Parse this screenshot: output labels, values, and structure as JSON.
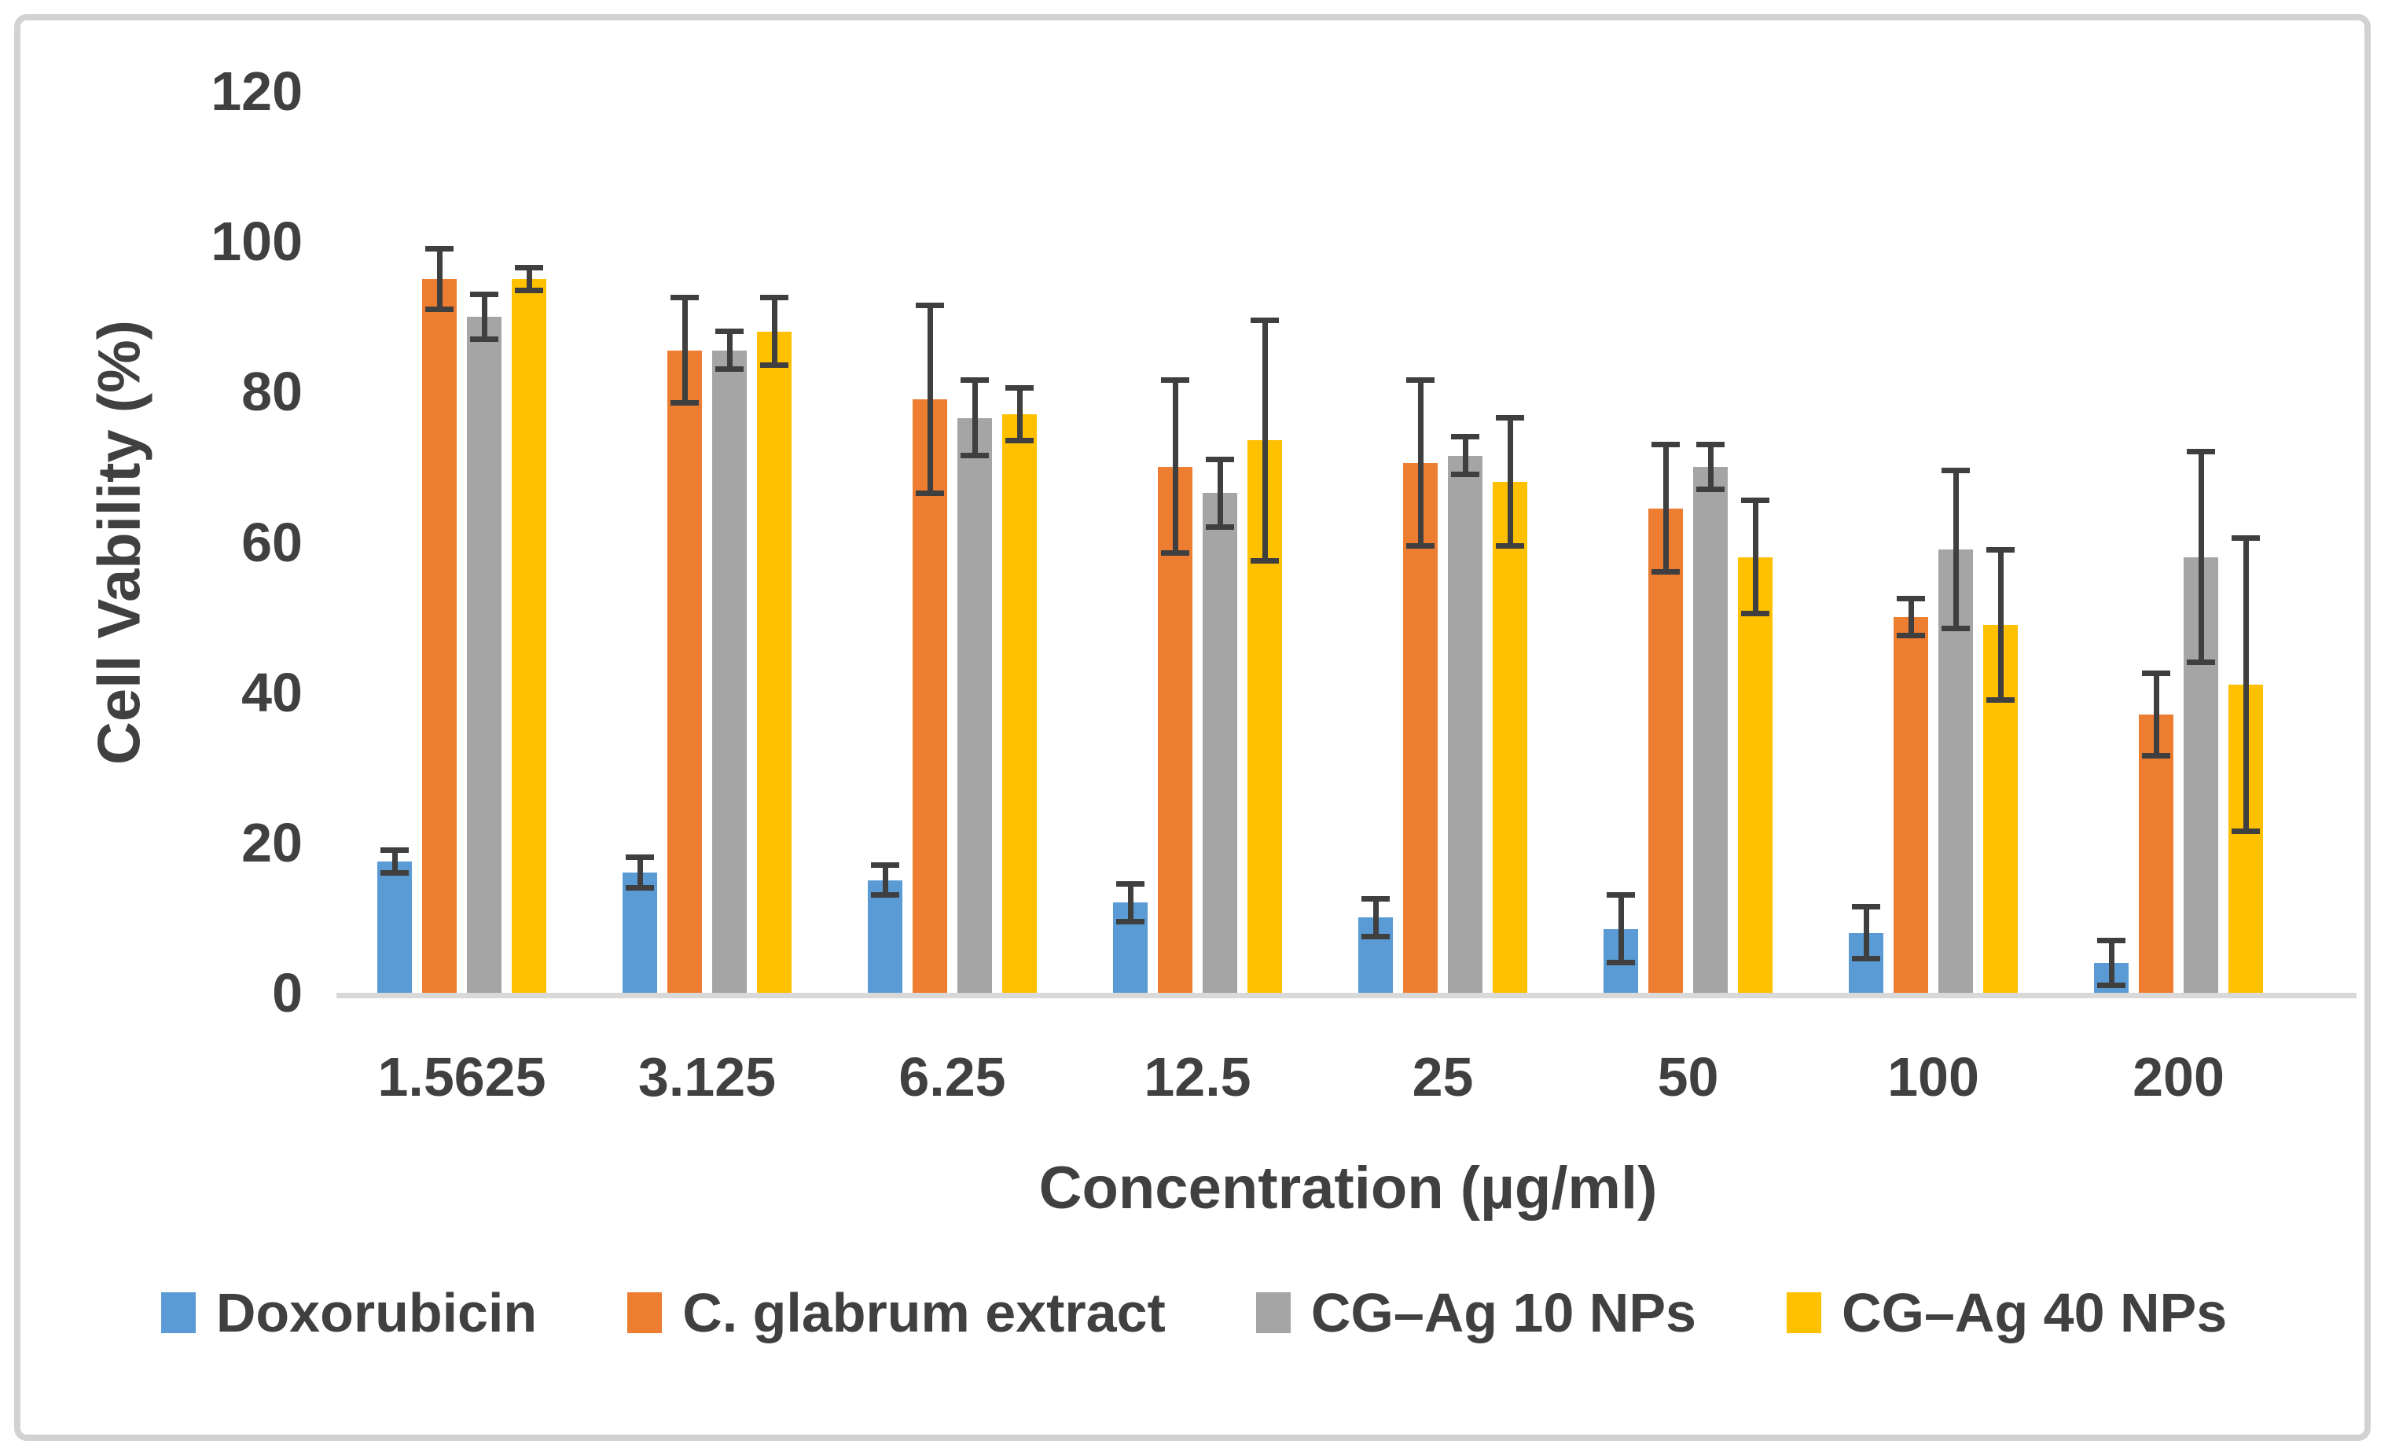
{
  "chart_data": {
    "type": "bar",
    "title": "",
    "xlabel": "Concentration (µg/ml)",
    "ylabel": "Cell Vability (%)",
    "ylim": [
      0,
      120
    ],
    "y_ticks": [
      0,
      20,
      40,
      60,
      80,
      100,
      120
    ],
    "grid": false,
    "legend_position": "bottom",
    "error_bars": true,
    "categories": [
      "1.5625",
      "3.125",
      "6.25",
      "12.5",
      "25",
      "50",
      "100",
      "200"
    ],
    "series": [
      {
        "name": "Doxorubicin",
        "color": "#5B9BD5",
        "values": [
          17.5,
          16,
          15,
          12,
          10,
          8.5,
          8,
          4
        ],
        "errors": [
          1.5,
          2,
          2,
          2.5,
          2.5,
          4.5,
          3.5,
          3
        ]
      },
      {
        "name": "C. glabrum extract",
        "color": "#ED7D31",
        "values": [
          95,
          85.5,
          79,
          70,
          70.5,
          64.5,
          50,
          37
        ],
        "errors": [
          4,
          7,
          12.5,
          11.5,
          11,
          8.5,
          2.5,
          5.5
        ]
      },
      {
        "name": "CG–Ag 10 NPs",
        "color": "#A5A5A5",
        "values": [
          90,
          85.5,
          76.5,
          66.5,
          71.5,
          70,
          59,
          58
        ],
        "errors": [
          3,
          2.5,
          5,
          4.5,
          2.5,
          3,
          10.5,
          14
        ]
      },
      {
        "name": "CG–Ag 40 NPs",
        "color": "#FFC000",
        "values": [
          95,
          88,
          77,
          73.5,
          68,
          58,
          49,
          41
        ],
        "errors": [
          1.5,
          4.5,
          3.5,
          16,
          8.5,
          7.5,
          10,
          19.5
        ]
      }
    ]
  },
  "colors": {
    "error_bar": "#3f3f3f",
    "axis_line": "#d9d9d9",
    "text": "#404040",
    "frame_border": "#d2d2d2",
    "background": "#ffffff"
  }
}
